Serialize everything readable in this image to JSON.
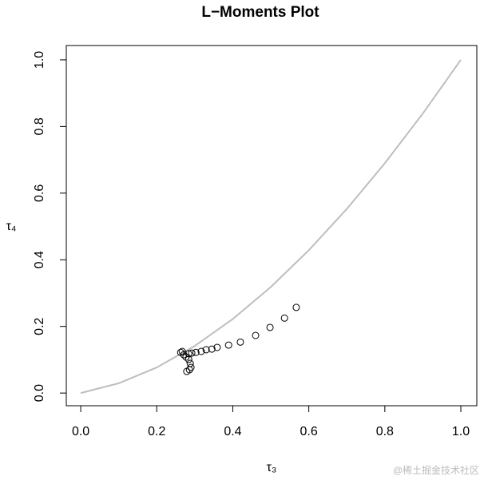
{
  "chart_data": {
    "type": "scatter",
    "title": "L−Moments Plot",
    "x_label": "τ₃",
    "y_label": "τ₄",
    "xlim": [
      -0.038,
      1.042
    ],
    "ylim": [
      -0.038,
      1.043
    ],
    "xticks": [
      {
        "value": 0,
        "label": "0.0"
      },
      0.2,
      0.4,
      0.6,
      0.8,
      {
        "value": 1,
        "label": "1.0"
      }
    ],
    "yticks": [
      {
        "value": 0,
        "label": "0.0"
      },
      0.2,
      0.4,
      0.6,
      0.8,
      {
        "value": 1,
        "label": "1.0"
      }
    ],
    "curve": {
      "color": "#bebebe",
      "x": [
        0,
        0.1,
        0.2,
        0.3,
        0.4,
        0.5,
        0.6,
        0.7,
        0.8,
        0.9,
        1
      ],
      "values": [
        0,
        0.0294,
        0.0769,
        0.1415,
        0.2222,
        0.3182,
        0.4286,
        0.5526,
        0.6897,
        0.839,
        1
      ]
    },
    "points": {
      "color": "#000000",
      "x": [
        0.567,
        0.536,
        0.498,
        0.46,
        0.42,
        0.389,
        0.359,
        0.345,
        0.33,
        0.317,
        0.303,
        0.292,
        0.284,
        0.267,
        0.263,
        0.271,
        0.277,
        0.284,
        0.288,
        0.29,
        0.286,
        0.279
      ],
      "values": [
        0.257,
        0.225,
        0.197,
        0.173,
        0.153,
        0.144,
        0.137,
        0.132,
        0.13,
        0.125,
        0.122,
        0.12,
        0.118,
        0.125,
        0.122,
        0.115,
        0.108,
        0.101,
        0.089,
        0.077,
        0.07,
        0.065
      ]
    },
    "watermark": "@稀土掘金技术社区"
  }
}
